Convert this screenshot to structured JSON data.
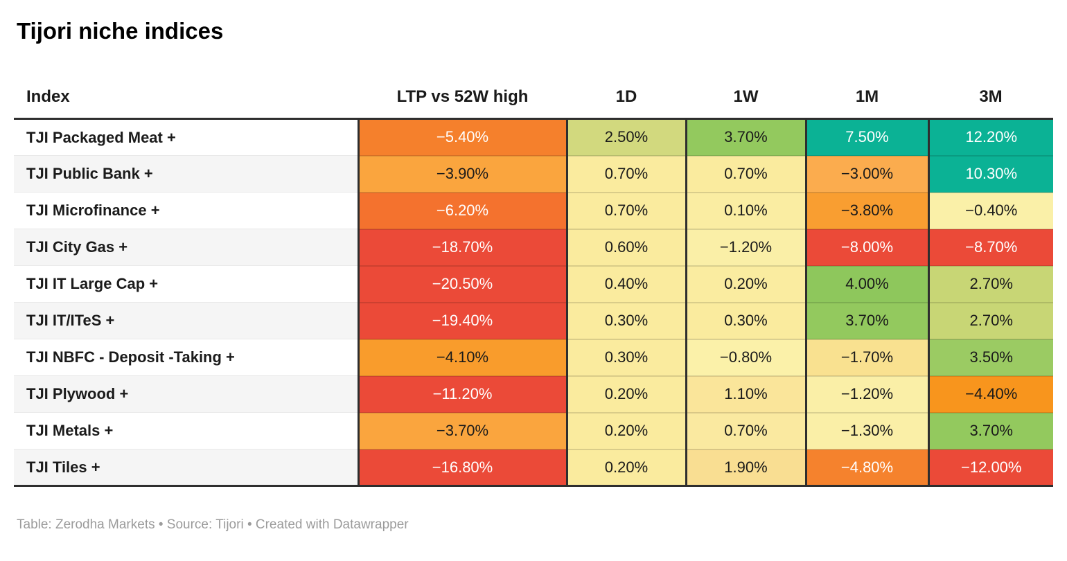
{
  "title": "Tijori niche indices",
  "footer": "Table: Zerodha Markets • Source: Tijori • Created with Datawrapper",
  "colors": {
    "border_dark": "#2e2e2e",
    "text_dark": "#1a1a1a",
    "text_light": "#ffffff",
    "zebra_gray": "#f5f5f5",
    "footer_gray": "#9b9b9b"
  },
  "table": {
    "columns": [
      "Index",
      "LTP vs 52W high",
      "1D",
      "1W",
      "1M",
      "3M"
    ],
    "rows": [
      {
        "index": "TJI Packaged Meat +",
        "cells": [
          {
            "value": "−5.40%",
            "bg": "#F5802C",
            "fg": "#ffffff"
          },
          {
            "value": "2.50%",
            "bg": "#D2D97E",
            "fg": "#1a1a1a"
          },
          {
            "value": "3.70%",
            "bg": "#93C95E",
            "fg": "#1a1a1a"
          },
          {
            "value": "7.50%",
            "bg": "#0BB295",
            "fg": "#ffffff"
          },
          {
            "value": "12.20%",
            "bg": "#0BB295",
            "fg": "#ffffff"
          }
        ]
      },
      {
        "index": "TJI Public Bank +",
        "cells": [
          {
            "value": "−3.90%",
            "bg": "#FAA53E",
            "fg": "#1a1a1a"
          },
          {
            "value": "0.70%",
            "bg": "#FAEB9E",
            "fg": "#1a1a1a"
          },
          {
            "value": "0.70%",
            "bg": "#FAEB9E",
            "fg": "#1a1a1a"
          },
          {
            "value": "−3.00%",
            "bg": "#FBAC4E",
            "fg": "#1a1a1a"
          },
          {
            "value": "10.30%",
            "bg": "#0BB295",
            "fg": "#ffffff"
          }
        ]
      },
      {
        "index": "TJI Microfinance +",
        "cells": [
          {
            "value": "−6.20%",
            "bg": "#F4722E",
            "fg": "#ffffff"
          },
          {
            "value": "0.70%",
            "bg": "#FAEB9E",
            "fg": "#1a1a1a"
          },
          {
            "value": "0.10%",
            "bg": "#FAEDA2",
            "fg": "#1a1a1a"
          },
          {
            "value": "−3.80%",
            "bg": "#F99E31",
            "fg": "#1a1a1a"
          },
          {
            "value": "−0.40%",
            "bg": "#FAF0A8",
            "fg": "#1a1a1a"
          }
        ]
      },
      {
        "index": "TJI City Gas +",
        "cells": [
          {
            "value": "−18.70%",
            "bg": "#EB4A38",
            "fg": "#ffffff"
          },
          {
            "value": "0.60%",
            "bg": "#FAEB9E",
            "fg": "#1a1a1a"
          },
          {
            "value": "−1.20%",
            "bg": "#FAEFA7",
            "fg": "#1a1a1a"
          },
          {
            "value": "−8.00%",
            "bg": "#EB4A38",
            "fg": "#ffffff"
          },
          {
            "value": "−8.70%",
            "bg": "#EB4A38",
            "fg": "#ffffff"
          }
        ]
      },
      {
        "index": "TJI IT Large Cap +",
        "cells": [
          {
            "value": "−20.50%",
            "bg": "#EB4A38",
            "fg": "#ffffff"
          },
          {
            "value": "0.40%",
            "bg": "#FAEB9E",
            "fg": "#1a1a1a"
          },
          {
            "value": "0.20%",
            "bg": "#FAECA0",
            "fg": "#1a1a1a"
          },
          {
            "value": "4.00%",
            "bg": "#8EC75C",
            "fg": "#1a1a1a"
          },
          {
            "value": "2.70%",
            "bg": "#C8D675",
            "fg": "#1a1a1a"
          }
        ]
      },
      {
        "index": "TJI IT/ITeS +",
        "cells": [
          {
            "value": "−19.40%",
            "bg": "#EB4A38",
            "fg": "#ffffff"
          },
          {
            "value": "0.30%",
            "bg": "#FAEB9E",
            "fg": "#1a1a1a"
          },
          {
            "value": "0.30%",
            "bg": "#FAEB9E",
            "fg": "#1a1a1a"
          },
          {
            "value": "3.70%",
            "bg": "#93C95E",
            "fg": "#1a1a1a"
          },
          {
            "value": "2.70%",
            "bg": "#C8D675",
            "fg": "#1a1a1a"
          }
        ]
      },
      {
        "index": "TJI NBFC - Deposit -Taking +",
        "cells": [
          {
            "value": "−4.10%",
            "bg": "#F99C2C",
            "fg": "#1a1a1a"
          },
          {
            "value": "0.30%",
            "bg": "#FAEB9E",
            "fg": "#1a1a1a"
          },
          {
            "value": "−0.80%",
            "bg": "#FBF1A9",
            "fg": "#1a1a1a"
          },
          {
            "value": "−1.70%",
            "bg": "#F9E190",
            "fg": "#1a1a1a"
          },
          {
            "value": "3.50%",
            "bg": "#9BCB63",
            "fg": "#1a1a1a"
          }
        ]
      },
      {
        "index": "TJI Plywood +",
        "cells": [
          {
            "value": "−11.20%",
            "bg": "#EB4A38",
            "fg": "#ffffff"
          },
          {
            "value": "0.20%",
            "bg": "#FAEB9E",
            "fg": "#1a1a1a"
          },
          {
            "value": "1.10%",
            "bg": "#FAE59A",
            "fg": "#1a1a1a"
          },
          {
            "value": "−1.20%",
            "bg": "#FAEFA7",
            "fg": "#1a1a1a"
          },
          {
            "value": "−4.40%",
            "bg": "#F8951D",
            "fg": "#1a1a1a"
          }
        ]
      },
      {
        "index": "TJI Metals +",
        "cells": [
          {
            "value": "−3.70%",
            "bg": "#FAA53E",
            "fg": "#1a1a1a"
          },
          {
            "value": "0.20%",
            "bg": "#FAEB9E",
            "fg": "#1a1a1a"
          },
          {
            "value": "0.70%",
            "bg": "#FAE9A0",
            "fg": "#1a1a1a"
          },
          {
            "value": "−1.30%",
            "bg": "#FAEFA7",
            "fg": "#1a1a1a"
          },
          {
            "value": "3.70%",
            "bg": "#93C95E",
            "fg": "#1a1a1a"
          }
        ]
      },
      {
        "index": "TJI Tiles +",
        "cells": [
          {
            "value": "−16.80%",
            "bg": "#EB4A38",
            "fg": "#ffffff"
          },
          {
            "value": "0.20%",
            "bg": "#FAEB9E",
            "fg": "#1a1a1a"
          },
          {
            "value": "1.90%",
            "bg": "#F9DE92",
            "fg": "#1a1a1a"
          },
          {
            "value": "−4.80%",
            "bg": "#F5822D",
            "fg": "#ffffff"
          },
          {
            "value": "−12.00%",
            "bg": "#EB4A38",
            "fg": "#ffffff"
          }
        ]
      }
    ]
  },
  "chart_data": {
    "type": "table",
    "title": "Tijori niche indices",
    "columns": [
      "Index",
      "LTP vs 52W high",
      "1D",
      "1W",
      "1M",
      "3M"
    ],
    "rows": [
      [
        "TJI Packaged Meat +",
        -5.4,
        2.5,
        3.7,
        7.5,
        12.2
      ],
      [
        "TJI Public Bank +",
        -3.9,
        0.7,
        0.7,
        -3.0,
        10.3
      ],
      [
        "TJI Microfinance +",
        -6.2,
        0.7,
        0.1,
        -3.8,
        -0.4
      ],
      [
        "TJI City Gas +",
        -18.7,
        0.6,
        -1.2,
        -8.0,
        -8.7
      ],
      [
        "TJI IT Large Cap +",
        -20.5,
        0.4,
        0.2,
        4.0,
        2.7
      ],
      [
        "TJI IT/ITeS +",
        -19.4,
        0.3,
        0.3,
        3.7,
        2.7
      ],
      [
        "TJI NBFC - Deposit -Taking +",
        -4.1,
        0.3,
        -0.8,
        -1.7,
        3.5
      ],
      [
        "TJI Plywood +",
        -11.2,
        0.2,
        1.1,
        -1.2,
        -4.4
      ],
      [
        "TJI Metals +",
        -3.7,
        0.2,
        0.7,
        -1.3,
        3.7
      ],
      [
        "TJI Tiles +",
        -16.8,
        0.2,
        1.9,
        -4.8,
        -12.0
      ]
    ],
    "units": "percent",
    "color_encoding": "diverging heatmap: red (negative) → pale yellow (near 0) → green → teal (strongly positive)",
    "legend_position": "none",
    "grid": "off"
  }
}
